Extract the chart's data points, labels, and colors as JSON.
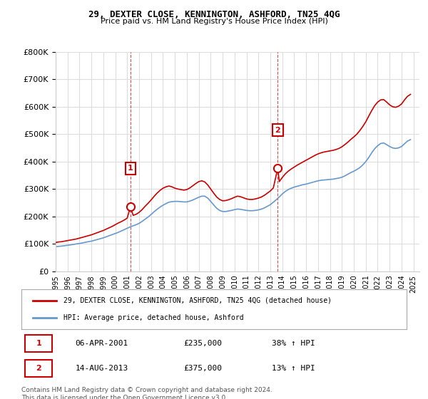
{
  "title": "29, DEXTER CLOSE, KENNINGTON, ASHFORD, TN25 4QG",
  "subtitle": "Price paid vs. HM Land Registry's House Price Index (HPI)",
  "legend_label_red": "29, DEXTER CLOSE, KENNINGTON, ASHFORD, TN25 4QG (detached house)",
  "legend_label_blue": "HPI: Average price, detached house, Ashford",
  "marker1_label": "1",
  "marker1_date": "06-APR-2001",
  "marker1_price": "£235,000",
  "marker1_hpi": "38% ↑ HPI",
  "marker1_year": 2001.27,
  "marker1_value": 235000,
  "marker2_label": "2",
  "marker2_date": "14-AUG-2013",
  "marker2_price": "£375,000",
  "marker2_hpi": "13% ↑ HPI",
  "marker2_year": 2013.62,
  "marker2_value": 375000,
  "footer": "Contains HM Land Registry data © Crown copyright and database right 2024.\nThis data is licensed under the Open Government Licence v3.0.",
  "xlim": [
    1995,
    2025.5
  ],
  "ylim": [
    0,
    800000
  ],
  "yticks": [
    0,
    100000,
    200000,
    300000,
    400000,
    500000,
    600000,
    700000,
    800000
  ],
  "xticks": [
    1995,
    1996,
    1997,
    1998,
    1999,
    2000,
    2001,
    2002,
    2003,
    2004,
    2005,
    2006,
    2007,
    2008,
    2009,
    2010,
    2011,
    2012,
    2013,
    2014,
    2015,
    2016,
    2017,
    2018,
    2019,
    2020,
    2021,
    2022,
    2023,
    2024,
    2025
  ],
  "red_color": "#cc0000",
  "blue_color": "#6699cc",
  "marker_box_color": "#cc0000",
  "background_color": "#ffffff",
  "grid_color": "#dddddd",
  "hpi_years": [
    1995,
    1995.25,
    1995.5,
    1995.75,
    1996,
    1996.25,
    1996.5,
    1996.75,
    1997,
    1997.25,
    1997.5,
    1997.75,
    1998,
    1998.25,
    1998.5,
    1998.75,
    1999,
    1999.25,
    1999.5,
    1999.75,
    2000,
    2000.25,
    2000.5,
    2000.75,
    2001,
    2001.25,
    2001.5,
    2001.75,
    2002,
    2002.25,
    2002.5,
    2002.75,
    2003,
    2003.25,
    2003.5,
    2003.75,
    2004,
    2004.25,
    2004.5,
    2004.75,
    2005,
    2005.25,
    2005.5,
    2005.75,
    2006,
    2006.25,
    2006.5,
    2006.75,
    2007,
    2007.25,
    2007.5,
    2007.75,
    2008,
    2008.25,
    2008.5,
    2008.75,
    2009,
    2009.25,
    2009.5,
    2009.75,
    2010,
    2010.25,
    2010.5,
    2010.75,
    2011,
    2011.25,
    2011.5,
    2011.75,
    2012,
    2012.25,
    2012.5,
    2012.75,
    2013,
    2013.25,
    2013.5,
    2013.75,
    2014,
    2014.25,
    2014.5,
    2014.75,
    2015,
    2015.25,
    2015.5,
    2015.75,
    2016,
    2016.25,
    2016.5,
    2016.75,
    2017,
    2017.25,
    2017.5,
    2017.75,
    2018,
    2018.25,
    2018.5,
    2018.75,
    2019,
    2019.25,
    2019.5,
    2019.75,
    2020,
    2020.25,
    2020.5,
    2020.75,
    2021,
    2021.25,
    2021.5,
    2021.75,
    2022,
    2022.25,
    2022.5,
    2022.75,
    2023,
    2023.25,
    2023.5,
    2023.75,
    2024,
    2024.25,
    2024.5,
    2024.75
  ],
  "hpi_values": [
    90000,
    91000,
    92000,
    93500,
    95000,
    96500,
    98000,
    100000,
    101500,
    103500,
    106000,
    108000,
    110000,
    113000,
    116000,
    119000,
    122000,
    126000,
    130000,
    134000,
    138000,
    142000,
    147000,
    152000,
    157000,
    162000,
    166000,
    170000,
    175000,
    182000,
    190000,
    198000,
    207000,
    217000,
    226000,
    234000,
    241000,
    247000,
    252000,
    254000,
    255000,
    255000,
    254000,
    253000,
    253000,
    256000,
    260000,
    265000,
    270000,
    274000,
    274000,
    267000,
    255000,
    242000,
    230000,
    222000,
    218000,
    218000,
    220000,
    222000,
    225000,
    227000,
    226000,
    224000,
    222000,
    221000,
    221000,
    222000,
    224000,
    227000,
    231000,
    237000,
    243000,
    252000,
    261000,
    271000,
    282000,
    291000,
    298000,
    303000,
    307000,
    310000,
    313000,
    316000,
    318000,
    321000,
    324000,
    327000,
    330000,
    332000,
    333000,
    334000,
    335000,
    336000,
    338000,
    340000,
    343000,
    348000,
    354000,
    360000,
    365000,
    371000,
    378000,
    388000,
    400000,
    415000,
    432000,
    447000,
    458000,
    466000,
    468000,
    462000,
    455000,
    450000,
    448000,
    450000,
    455000,
    465000,
    475000,
    480000
  ],
  "red_years": [
    1995,
    1995.25,
    1995.5,
    1995.75,
    1996,
    1996.25,
    1996.5,
    1996.75,
    1997,
    1997.25,
    1997.5,
    1997.75,
    1998,
    1998.25,
    1998.5,
    1998.75,
    1999,
    1999.25,
    1999.5,
    1999.75,
    2000,
    2000.25,
    2000.5,
    2000.75,
    2001,
    2001.27,
    2001.5,
    2001.75,
    2002,
    2002.25,
    2002.5,
    2002.75,
    2003,
    2003.25,
    2003.5,
    2003.75,
    2004,
    2004.25,
    2004.5,
    2004.75,
    2005,
    2005.25,
    2005.5,
    2005.75,
    2006,
    2006.25,
    2006.5,
    2006.75,
    2007,
    2007.25,
    2007.5,
    2007.75,
    2008,
    2008.25,
    2008.5,
    2008.75,
    2009,
    2009.25,
    2009.5,
    2009.75,
    2010,
    2010.25,
    2010.5,
    2010.75,
    2011,
    2011.25,
    2011.5,
    2011.75,
    2012,
    2012.25,
    2012.5,
    2012.75,
    2013,
    2013.25,
    2013.62,
    2013.75,
    2014,
    2014.25,
    2014.5,
    2014.75,
    2015,
    2015.25,
    2015.5,
    2015.75,
    2016,
    2016.25,
    2016.5,
    2016.75,
    2017,
    2017.25,
    2017.5,
    2017.75,
    2018,
    2018.25,
    2018.5,
    2018.75,
    2019,
    2019.25,
    2019.5,
    2019.75,
    2020,
    2020.25,
    2020.5,
    2020.75,
    2021,
    2021.25,
    2021.5,
    2021.75,
    2022,
    2022.25,
    2022.5,
    2022.75,
    2023,
    2023.25,
    2023.5,
    2023.75,
    2024,
    2024.25,
    2024.5,
    2024.75
  ],
  "red_values": [
    105000,
    107000,
    108000,
    110000,
    112000,
    114000,
    116000,
    118000,
    121000,
    124000,
    127000,
    130000,
    133000,
    137000,
    141000,
    145000,
    149000,
    154000,
    159000,
    164000,
    170000,
    176000,
    181000,
    187000,
    194000,
    235000,
    204000,
    208000,
    215000,
    225000,
    237000,
    248000,
    260000,
    273000,
    285000,
    295000,
    303000,
    308000,
    311000,
    308000,
    303000,
    300000,
    298000,
    296000,
    298000,
    304000,
    312000,
    320000,
    327000,
    330000,
    326000,
    315000,
    300000,
    285000,
    271000,
    262000,
    257000,
    258000,
    261000,
    265000,
    270000,
    274000,
    272000,
    268000,
    264000,
    262000,
    262000,
    264000,
    267000,
    271000,
    277000,
    285000,
    293000,
    304000,
    375000,
    327000,
    342000,
    355000,
    365000,
    373000,
    380000,
    387000,
    393000,
    399000,
    405000,
    411000,
    417000,
    423000,
    428000,
    432000,
    435000,
    437000,
    439000,
    441000,
    444000,
    448000,
    454000,
    462000,
    471000,
    481000,
    490000,
    500000,
    513000,
    528000,
    545000,
    566000,
    586000,
    604000,
    617000,
    625000,
    626000,
    617000,
    607000,
    600000,
    598000,
    602000,
    610000,
    625000,
    638000,
    645000
  ]
}
